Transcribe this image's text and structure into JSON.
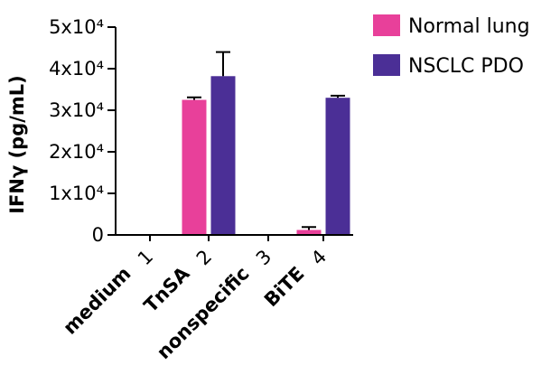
{
  "chart_data": {
    "type": "bar",
    "ylabel": "IFNγ (pg/mL)",
    "ylim": [
      0,
      50000
    ],
    "yticks": [
      {
        "value": 0,
        "label": "0"
      },
      {
        "value": 10000,
        "label": "1x10⁴"
      },
      {
        "value": 20000,
        "label": "2x10⁴"
      },
      {
        "value": 30000,
        "label": "3x10⁴"
      },
      {
        "value": 40000,
        "label": "4x10⁴"
      },
      {
        "value": 50000,
        "label": "5x10⁴"
      }
    ],
    "categories": [
      "medium",
      "TnSA",
      "nonspecific",
      "BiTE"
    ],
    "group_numbers": [
      "1",
      "2",
      "3",
      "4"
    ],
    "series": [
      {
        "name": "Normal lung",
        "color": "#e8409a",
        "values": [
          0,
          32500,
          0,
          1200
        ],
        "errors": [
          0,
          600,
          0,
          700
        ]
      },
      {
        "name": "NSCLC PDO",
        "color": "#4b2f96",
        "values": [
          0,
          38200,
          0,
          33000
        ],
        "errors": [
          0,
          5800,
          0,
          500
        ]
      }
    ],
    "legend_position": "top-right"
  }
}
